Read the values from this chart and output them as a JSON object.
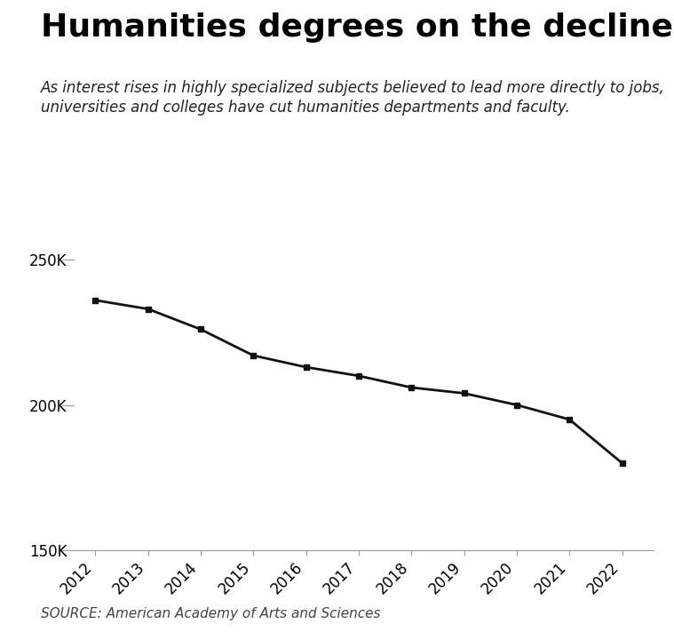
{
  "title": "Humanities degrees on the decline",
  "subtitle_line1": "As interest rises in highly specialized subjects believed to lead more directly to jobs,",
  "subtitle_line2": "universities and colleges have cut humanities departments and faculty.",
  "source": "SOURCE: American Academy of Arts and Sciences",
  "years": [
    2012,
    2013,
    2014,
    2015,
    2016,
    2017,
    2018,
    2019,
    2020,
    2021,
    2022
  ],
  "values": [
    236000,
    233000,
    226000,
    217000,
    213000,
    210000,
    206000,
    204000,
    200000,
    195000,
    180000
  ],
  "ylim": [
    150000,
    260000
  ],
  "yticks": [
    150000,
    200000,
    250000
  ],
  "ytick_labels": [
    "150K",
    "200K",
    "250K"
  ],
  "line_color": "#111111",
  "marker": "s",
  "marker_size": 4,
  "background_color": "#ffffff",
  "title_fontsize": 26,
  "subtitle_fontsize": 12,
  "source_fontsize": 11,
  "tick_fontsize": 12
}
